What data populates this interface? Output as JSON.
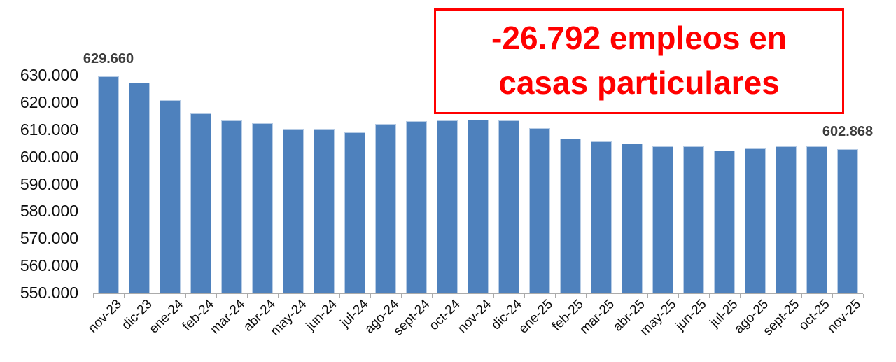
{
  "annotation": {
    "line1": "-26.792 empleos en",
    "line2": "casas particulares",
    "text_color": "#ff0000",
    "border_color": "#ff0000"
  },
  "chart_data": {
    "type": "bar",
    "title": "",
    "xlabel": "",
    "ylabel": "",
    "grid": "off",
    "legend": "none",
    "categories": [
      "nov-23",
      "dic-23",
      "ene-24",
      "feb-24",
      "mar-24",
      "abr-24",
      "may-24",
      "jun-24",
      "jul-24",
      "ago-24",
      "sept-24",
      "oct-24",
      "nov-24",
      "dic-24",
      "ene-25",
      "feb-25",
      "mar-25",
      "abr-25",
      "may-25",
      "jun-25",
      "jul-25",
      "ago-25",
      "sept-25",
      "oct-25",
      "nov-25"
    ],
    "values": [
      629660,
      627300,
      620800,
      616000,
      613200,
      612200,
      610300,
      610200,
      608900,
      612000,
      613000,
      613300,
      613700,
      613200,
      610600,
      606600,
      605500,
      604900,
      603800,
      603900,
      602300,
      603100,
      603900,
      603800,
      602868
    ],
    "first_point_label": "629.660",
    "last_point_label": "602.868",
    "y_axis": {
      "min": 550000,
      "max": 630000,
      "tick_step": 10000,
      "tick_values": [
        630000,
        620000,
        610000,
        600000,
        590000,
        580000,
        570000,
        560000,
        550000
      ],
      "tick_labels": [
        "630.000",
        "620.000",
        "610.000",
        "600.000",
        "590.000",
        "580.000",
        "570.000",
        "560.000",
        "550.000"
      ]
    },
    "colors": {
      "bar_fill": "#4e81bd",
      "bar_border": "#b7cce5",
      "axis": "#ababab",
      "axis_text": "#0d0d0d",
      "data_label": "#3d3d3d"
    }
  }
}
